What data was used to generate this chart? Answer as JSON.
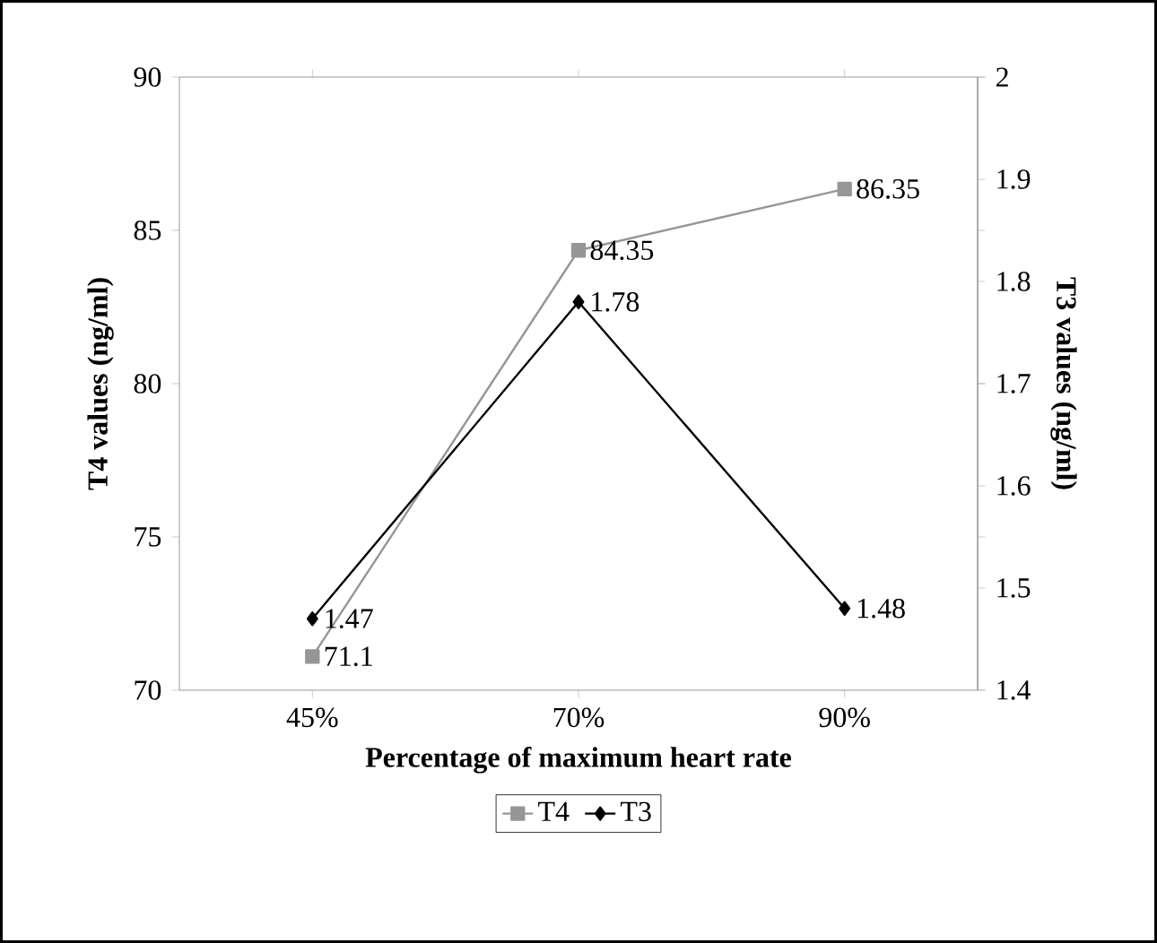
{
  "chart_data": {
    "type": "line",
    "xlabel": "Percentage of maximum heart rate",
    "ylabel": "T4 values (ng/ml)",
    "y2label": "T3 values (ng/ml)",
    "categories": [
      "45%",
      "70%",
      "90%"
    ],
    "series": [
      {
        "name": "T4",
        "color": "#969696",
        "marker": "square",
        "values": [
          71.1,
          84.35,
          86.35
        ]
      },
      {
        "name": "T3",
        "color": "#000000",
        "marker": "diamond",
        "axis": "y2",
        "values": [
          1.47,
          1.78,
          1.48
        ]
      }
    ],
    "ylim": [
      70,
      90
    ],
    "yticks": [
      70,
      75,
      80,
      85,
      90
    ],
    "y2lim": [
      1.4,
      2
    ],
    "y2ticks": [
      1.4,
      1.5,
      1.6,
      1.7,
      1.8,
      1.9,
      2
    ],
    "data_labels": true,
    "legend": "bottom",
    "grid": false
  }
}
